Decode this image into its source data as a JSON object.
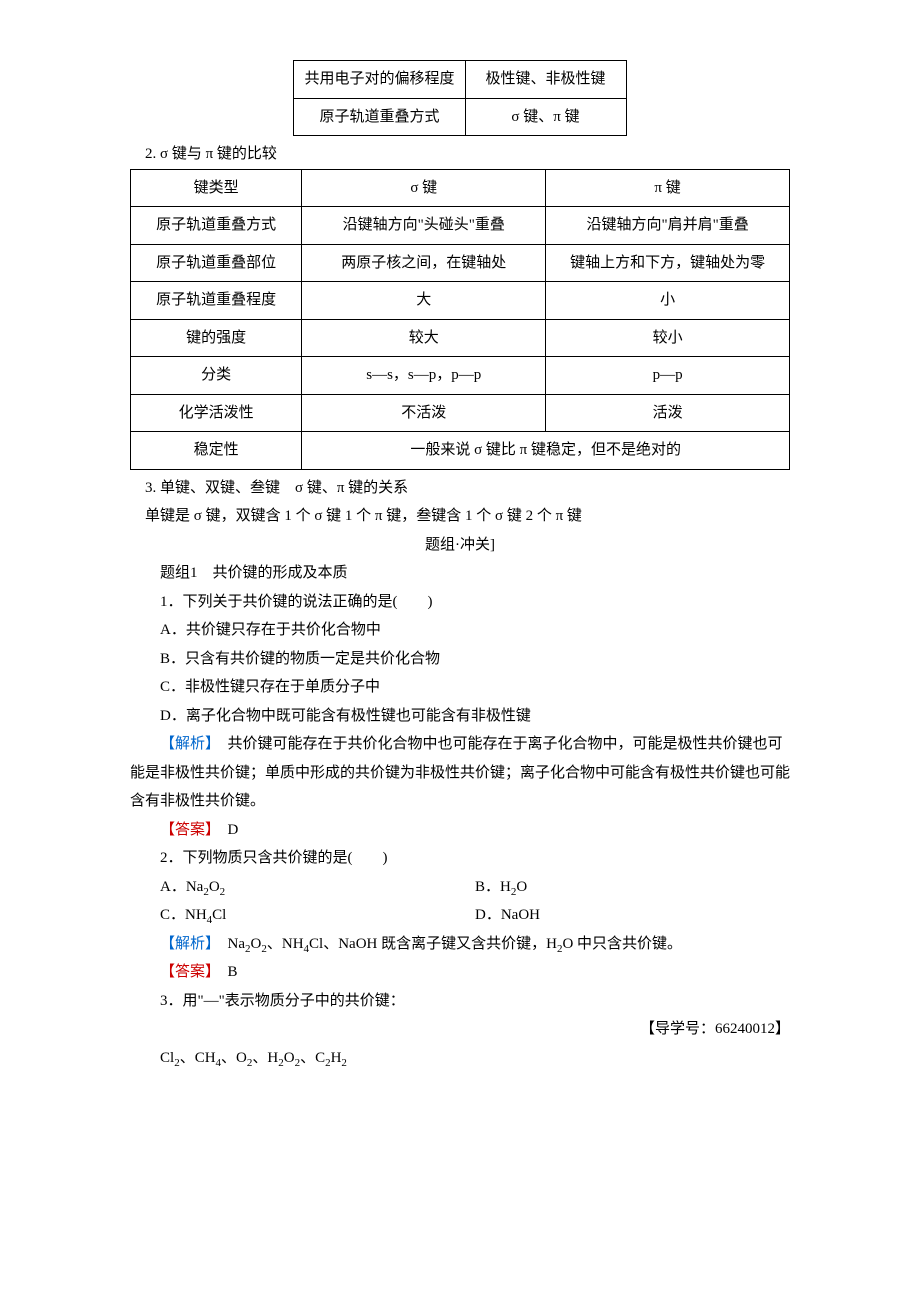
{
  "table1": {
    "rows": [
      [
        "共用电子对的偏移程度",
        "极性键、非极性键"
      ],
      [
        "原子轨道重叠方式",
        "σ 键、π 键"
      ]
    ]
  },
  "sec2_title": "2. σ 键与 π 键的比较",
  "table2": {
    "header": [
      "键类型",
      "σ 键",
      "π 键"
    ],
    "rows": [
      [
        "原子轨道重叠方式",
        "沿键轴方向\"头碰头\"重叠",
        "沿键轴方向\"肩并肩\"重叠"
      ],
      [
        "原子轨道重叠部位",
        "两原子核之间，在键轴处",
        "键轴上方和下方，键轴处为零"
      ],
      [
        "原子轨道重叠程度",
        "大",
        "小"
      ],
      [
        "键的强度",
        "较大",
        "较小"
      ],
      [
        "分类",
        "s—s，s—p，p—p",
        "p—p"
      ],
      [
        "化学活泼性",
        "不活泼",
        "活泼"
      ]
    ],
    "last_row_label": "稳定性",
    "last_row_merged": "一般来说 σ 键比 π 键稳定，但不是绝对的"
  },
  "sec3_title": "3. 单键、双键、叁键　σ 键、π 键的关系",
  "sec3_body": "单键是 σ 键，双键含 1 个 σ 键 1 个 π 键，叁键含 1 个 σ 键 2 个 π 键",
  "divider": "题组·冲关]",
  "group_title": "题组1　共价键的形成及本质",
  "q1": {
    "stem": "1．下列关于共价键的说法正确的是(　　)",
    "opts": [
      "A．共价键只存在于共价化合物中",
      "B．只含有共价键的物质一定是共价化合物",
      "C．非极性键只存在于单质分子中",
      "D．离子化合物中既可能含有极性键也可能含有非极性键"
    ],
    "expl_label": "【解析】",
    "expl": "　共价键可能存在于共价化合物中也可能存在于离子化合物中，可能是极性共价键也可能是非极性共价键；单质中形成的共价键为非极性共价键；离子化合物中可能含有极性共价键也可能含有非极性共价键。",
    "ans_label": "【答案】",
    "ans": "　D"
  },
  "q2": {
    "stem": "2．下列物质只含共价键的是(　　)",
    "opts": {
      "a_pre": "A．Na",
      "a_sub1": "2",
      "a_mid": "O",
      "a_sub2": "2",
      "b_pre": "B．H",
      "b_sub": "2",
      "b_post": "O",
      "c_pre": "C．NH",
      "c_sub": "4",
      "c_post": "Cl",
      "d": "D．NaOH"
    },
    "expl_label": "【解析】",
    "expl_p1": "　Na",
    "expl_s1": "2",
    "expl_p2": "O",
    "expl_s2": "2",
    "expl_p3": "、NH",
    "expl_s3": "4",
    "expl_p4": "Cl、NaOH 既含离子键又含共价键，H",
    "expl_s4": "2",
    "expl_p5": "O 中只含共价键。",
    "ans_label": "【答案】",
    "ans": "　B"
  },
  "q3": {
    "stem": "3．用\"—\"表示物质分子中的共价键：",
    "ref": "【导学号：66240012】",
    "list_p1": "Cl",
    "list_s1": "2",
    "list_p2": "、CH",
    "list_s2": "4",
    "list_p3": "、O",
    "list_s3": "2",
    "list_p4": "、H",
    "list_s4": "2",
    "list_p5": "O",
    "list_s5": "2",
    "list_p6": "、C",
    "list_s6": "2",
    "list_p7": "H",
    "list_s7": "2"
  }
}
